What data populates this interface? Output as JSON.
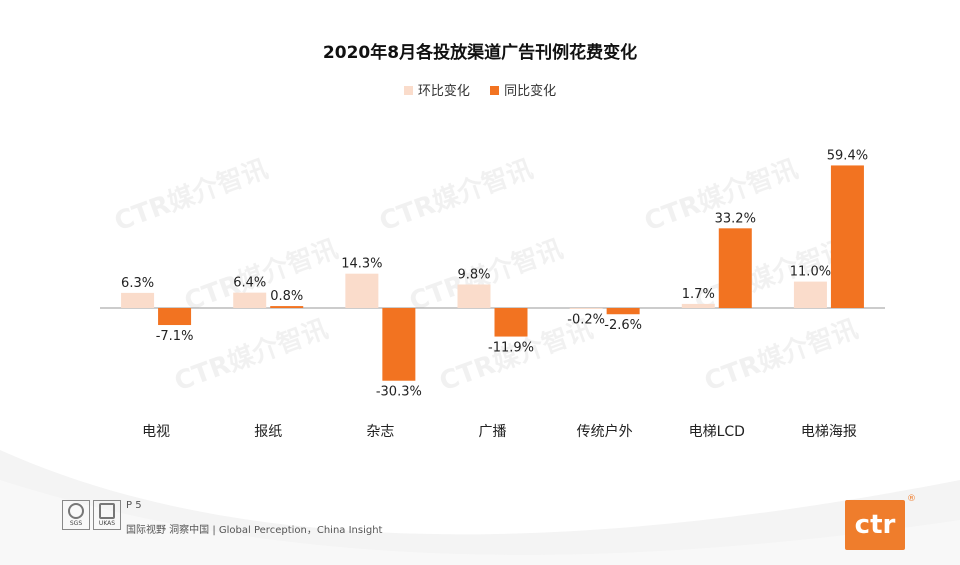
{
  "chart_data": {
    "type": "bar",
    "title": "2020年8月各投放渠道广告刊例花费变化",
    "categories": [
      "电视",
      "报纸",
      "杂志",
      "广播",
      "传统户外",
      "电梯LCD",
      "电梯海报"
    ],
    "series": [
      {
        "name": "环比变化",
        "values": [
          6.3,
          6.4,
          14.3,
          9.8,
          -0.2,
          1.7,
          11.0
        ],
        "labels": [
          "6.3%",
          "6.4%",
          "14.3%",
          "9.8%",
          "-0.2%",
          "1.7%",
          "11.0%"
        ]
      },
      {
        "name": "同比变化",
        "values": [
          -7.1,
          0.8,
          -30.3,
          -11.9,
          -2.6,
          33.2,
          59.4
        ],
        "labels": [
          "-7.1%",
          "0.8%",
          "-30.3%",
          "-11.9%",
          "-2.6%",
          "33.2%",
          "59.4%"
        ]
      }
    ],
    "ylim": [
      -35,
      65
    ],
    "xlabel": "",
    "ylabel": "",
    "grid": false,
    "legend": "top-center"
  },
  "colors": {
    "mom": "#fadccb",
    "yoy": "#f27321",
    "axis": "#9a9a9a",
    "brand": "#ef7d2c"
  },
  "watermark": "CTR媒介智讯",
  "footer": {
    "page": "P 5",
    "text": "国际视野  洞察中国 |  Global Perception，China Insight",
    "cert1": "SGS",
    "cert2": "UKAS"
  },
  "logo": {
    "text": "ctr",
    "reg": "®"
  }
}
